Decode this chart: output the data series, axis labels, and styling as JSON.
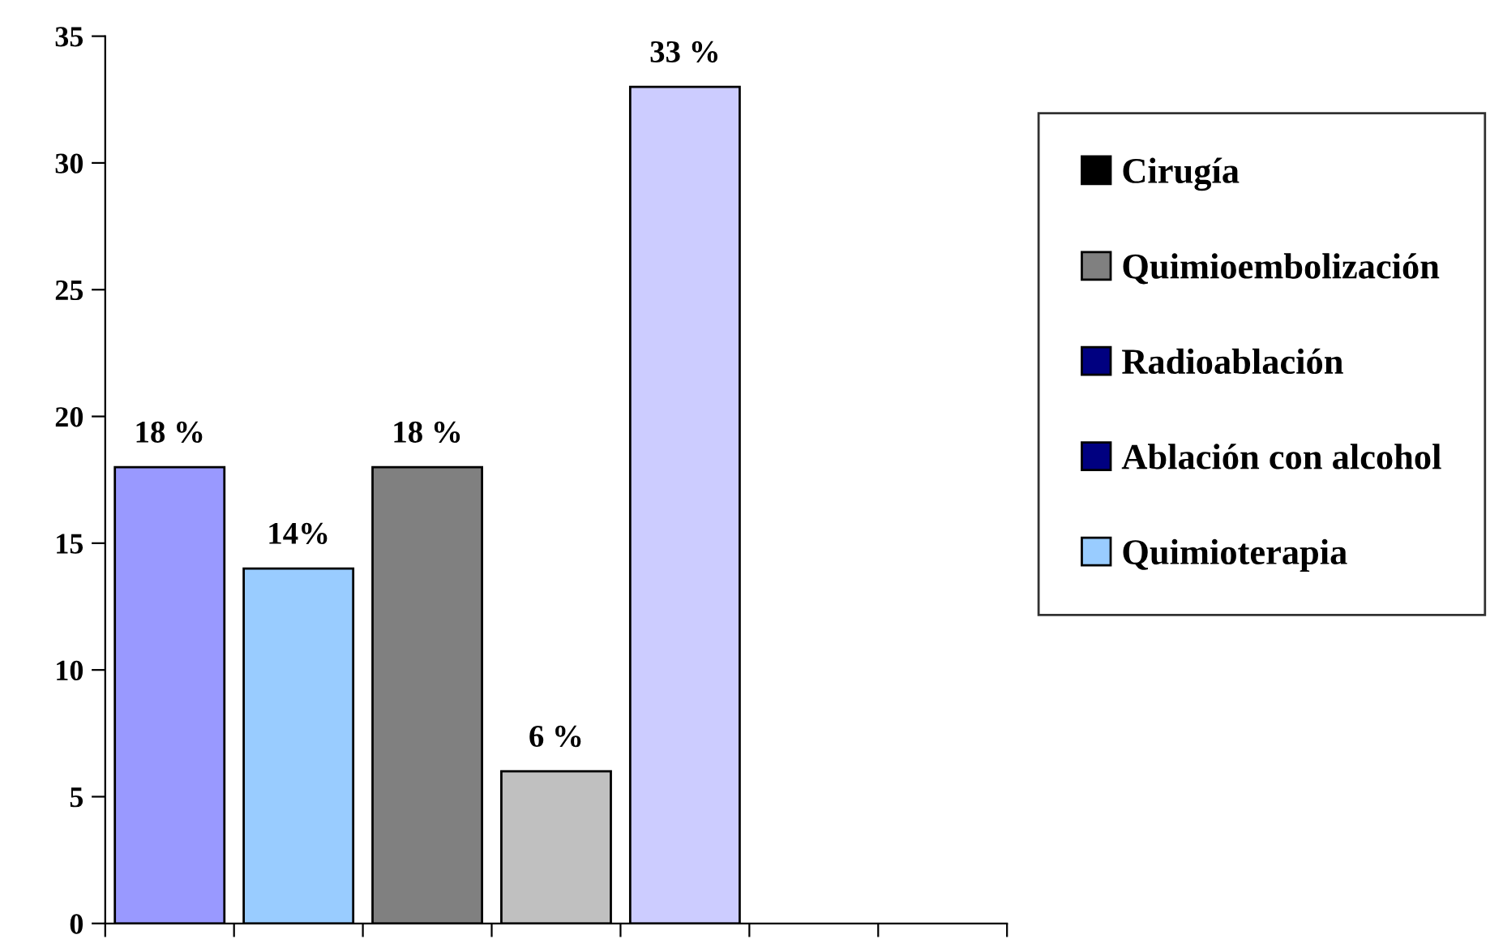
{
  "chart_data": {
    "type": "bar",
    "categories": [
      null,
      null,
      null,
      null,
      null,
      null,
      null
    ],
    "series": [
      {
        "colors": [
          "#9999ff",
          "#99ccff",
          "#808080",
          "#c0c0c0",
          "#ccccff",
          null,
          null
        ],
        "values": [
          18,
          14,
          18,
          6,
          33,
          null,
          null
        ],
        "value_labels": [
          "18 %",
          "14%",
          "18 %",
          "6 %",
          "33 %",
          null,
          null
        ]
      },
      {
        "name": "Cirugía",
        "color": "#000000",
        "values": [
          null,
          null,
          null,
          null,
          null,
          null,
          null
        ]
      },
      {
        "name": "Quimioembolización",
        "color": "#808080",
        "values": [
          null,
          null,
          null,
          null,
          null,
          null,
          null
        ]
      },
      {
        "name": "Radioablación",
        "color": "#000080",
        "values": [
          null,
          null,
          null,
          null,
          null,
          null,
          null
        ]
      },
      {
        "name": "Ablación con alcohol",
        "color": "#000080",
        "values": [
          null,
          null,
          null,
          null,
          null,
          null,
          null
        ]
      },
      {
        "name": "Quimioterapia",
        "color": "#99ccff",
        "values": [
          null,
          null,
          null,
          null,
          null,
          null,
          null
        ]
      }
    ],
    "ylim": [
      0,
      35
    ],
    "yticks": [
      0,
      5,
      10,
      15,
      20,
      25,
      30,
      35
    ],
    "grid": false,
    "legend": "top right"
  }
}
